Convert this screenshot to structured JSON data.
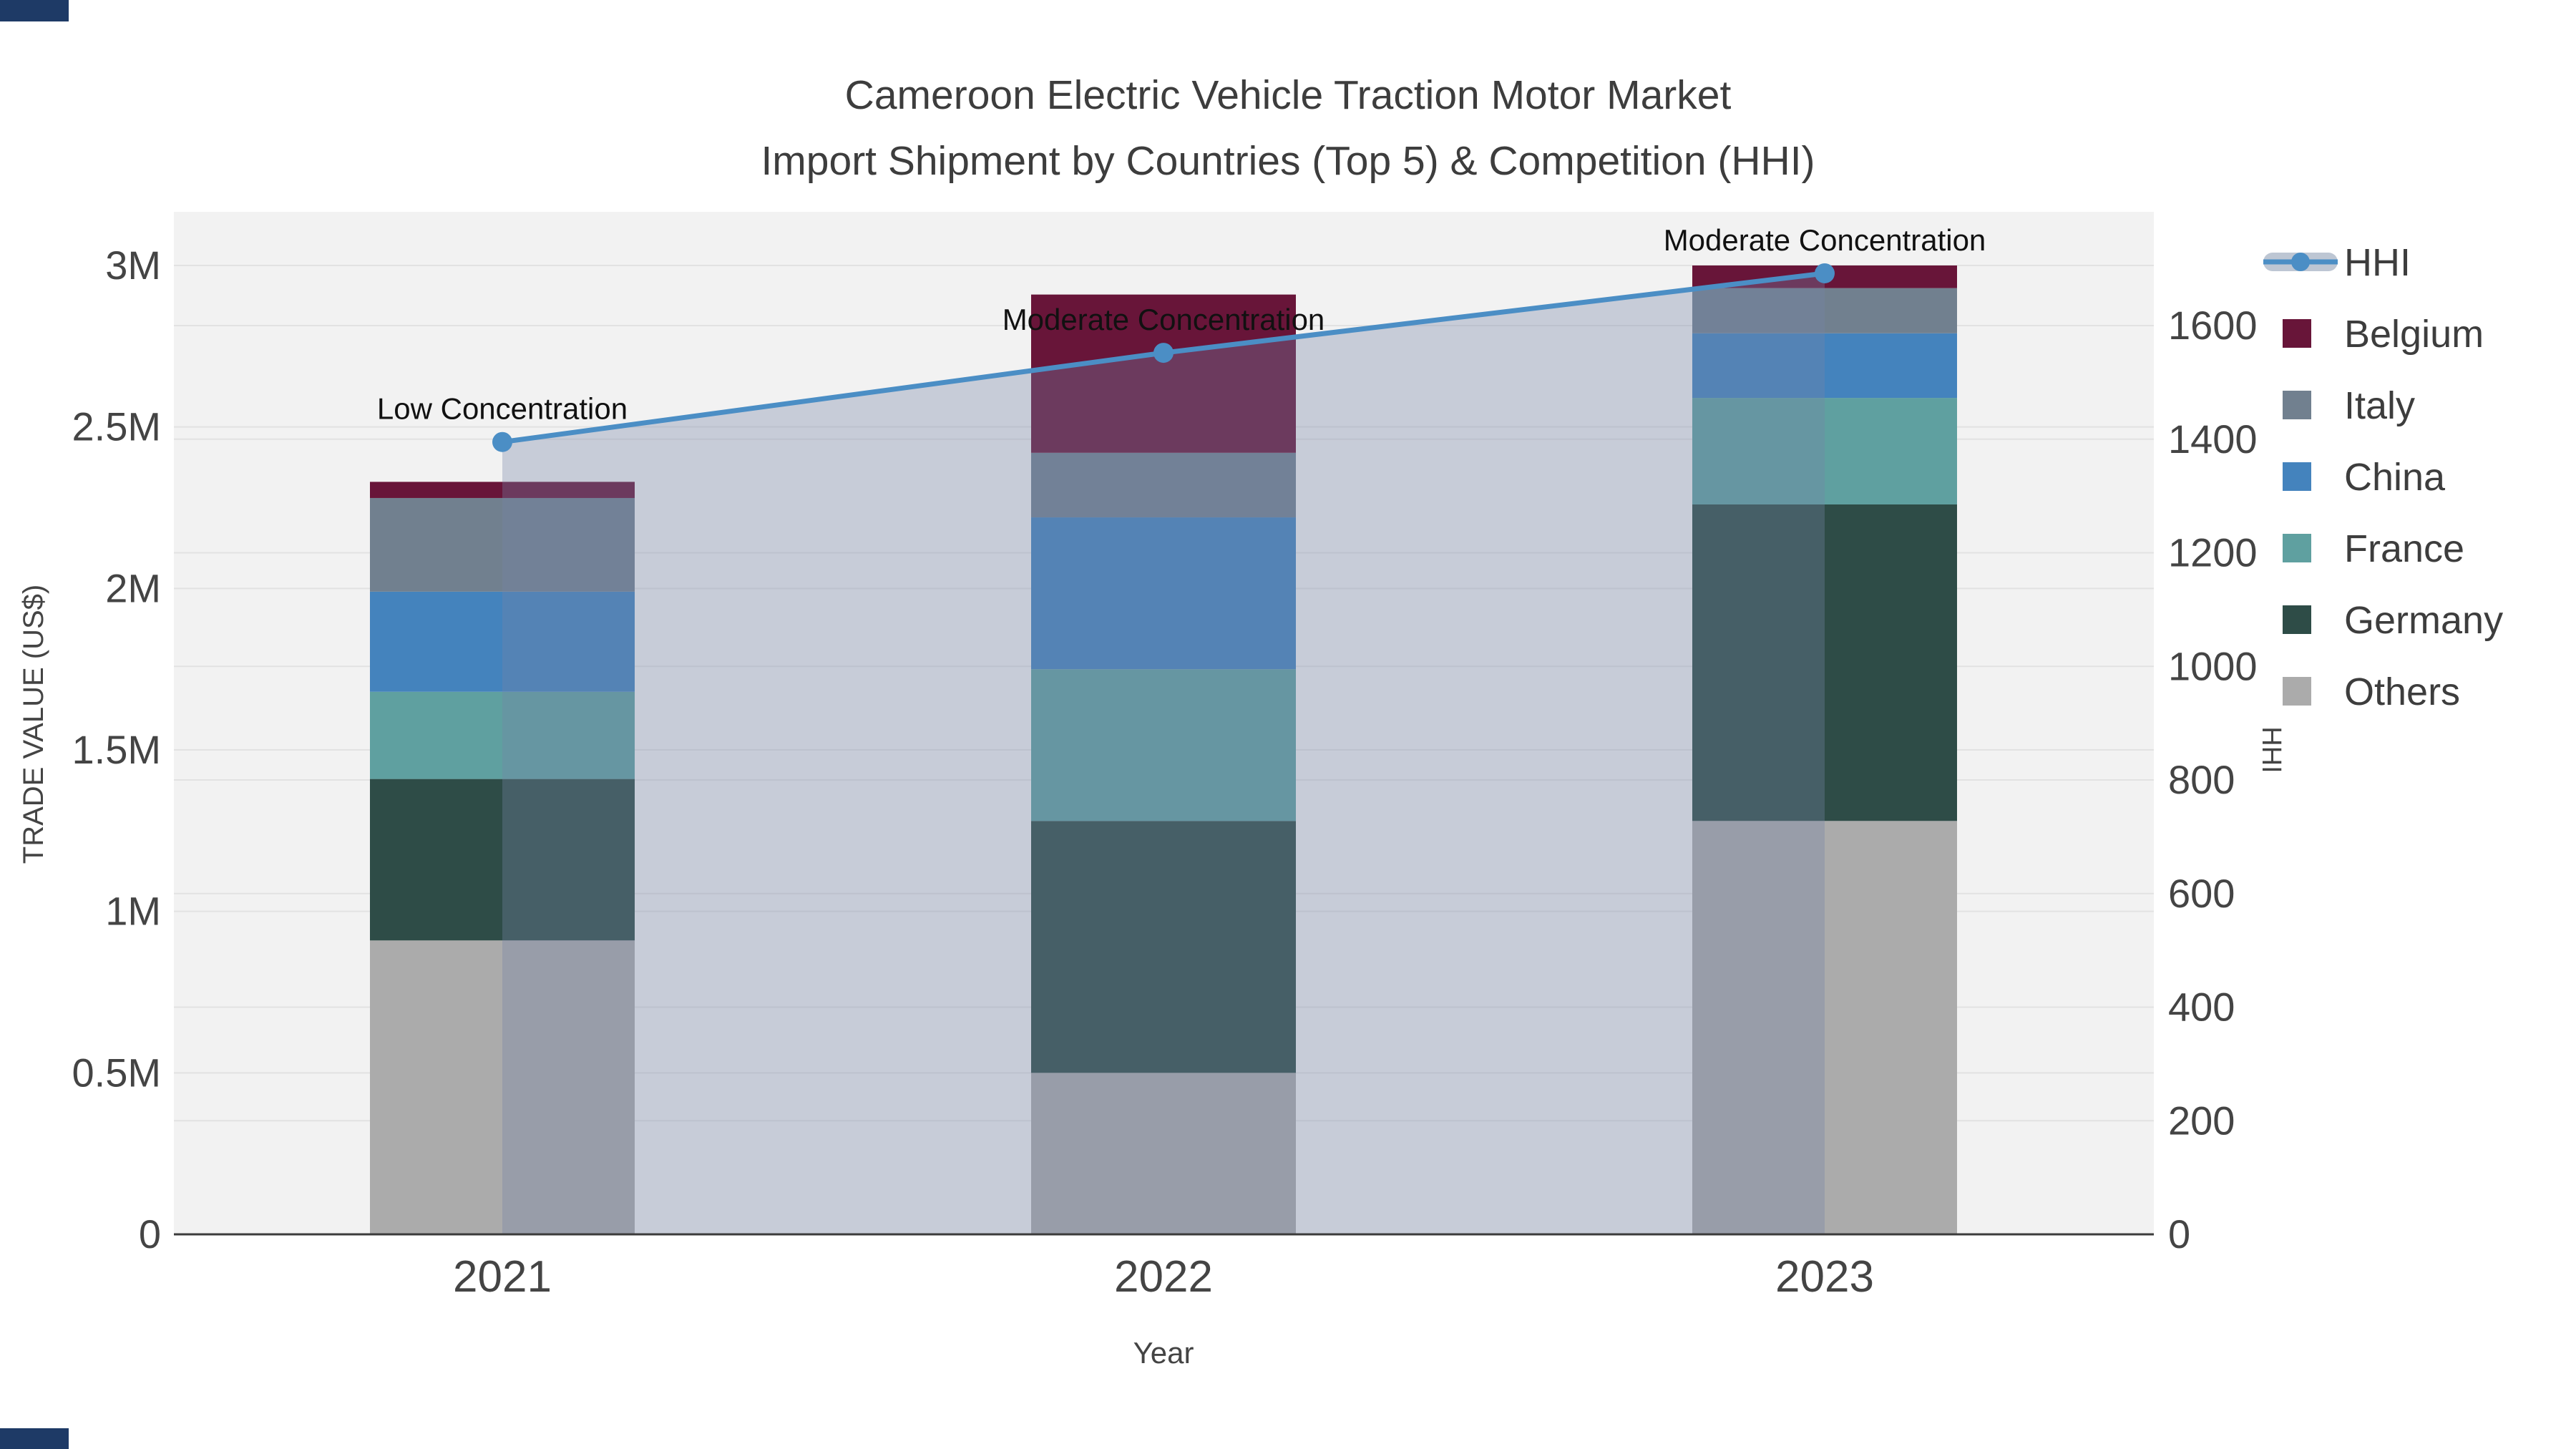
{
  "page": {
    "background": "#ffffff"
  },
  "title": {
    "line1": "Cameroon Electric Vehicle Traction Motor Market",
    "line2": "Import Shipment by Countries (Top 5) & Competition (HHI)"
  },
  "colors": {
    "plot_bg": "#f2f2f2",
    "grid": "#e2e2e2",
    "axis_line": "#3b3b3b",
    "hhi_line": "#4b8ec5",
    "hhi_area_fill": "rgba(116,132,166,0.34)",
    "legend_band": "#bdc6d3",
    "screen_artifact": "#1e3a66"
  },
  "chart_data": {
    "type": "combo-stacked-bar-line",
    "title": "Cameroon Electric Vehicle Traction Motor Market Import Shipment by Countries (Top 5) & Competition (HHI)",
    "categories": [
      "2021",
      "2022",
      "2023"
    ],
    "bar_unit": "US$ millions",
    "stack_order_bottom_to_top": [
      "Others",
      "Germany",
      "France",
      "China",
      "Italy",
      "Belgium"
    ],
    "series": [
      {
        "name": "Belgium",
        "color": "#681539",
        "values": [
          0.05,
          0.49,
          0.07
        ]
      },
      {
        "name": "Italy",
        "color": "#71808f",
        "values": [
          0.29,
          0.2,
          0.14
        ]
      },
      {
        "name": "China",
        "color": "#4483bd",
        "values": [
          0.31,
          0.47,
          0.2
        ]
      },
      {
        "name": "France",
        "color": "#5fa0a0",
        "values": [
          0.27,
          0.47,
          0.33
        ]
      },
      {
        "name": "Germany",
        "color": "#2e4c47",
        "values": [
          0.5,
          0.78,
          0.98
        ]
      },
      {
        "name": "Others",
        "color": "#ababab",
        "values": [
          0.91,
          0.5,
          1.28
        ]
      }
    ],
    "bar_totals": [
      2.33,
      2.91,
      3.0
    ],
    "line_series": {
      "name": "HHI",
      "color": "#4b8ec5",
      "values": [
        1395,
        1552,
        1692
      ]
    },
    "annotations": [
      {
        "text": "Low Concentration",
        "category": "2021"
      },
      {
        "text": "Moderate Concentration",
        "category": "2022"
      },
      {
        "text": "Moderate Concentration",
        "category": "2023"
      }
    ],
    "ylabel": "TRADE VALUE (US$)",
    "ylabel_right": "HHI",
    "xlabel": "Year",
    "y_left_ticks": {
      "labels": [
        "0",
        "0.5M",
        "1M",
        "1.5M",
        "2M",
        "2.5M",
        "3M"
      ],
      "values": [
        0,
        0.5,
        1,
        1.5,
        2,
        2.5,
        3
      ],
      "range": [
        0,
        3.17
      ]
    },
    "y_right_ticks": {
      "labels": [
        "0",
        "200",
        "400",
        "600",
        "800",
        "1000",
        "1200",
        "1400",
        "1600"
      ],
      "values": [
        0,
        200,
        400,
        600,
        800,
        1000,
        1200,
        1400,
        1600
      ],
      "range": [
        0,
        1800
      ]
    },
    "legend_order": [
      "HHI",
      "Belgium",
      "Italy",
      "China",
      "France",
      "Germany",
      "Others"
    ],
    "grid": true,
    "legend_position": "right"
  }
}
